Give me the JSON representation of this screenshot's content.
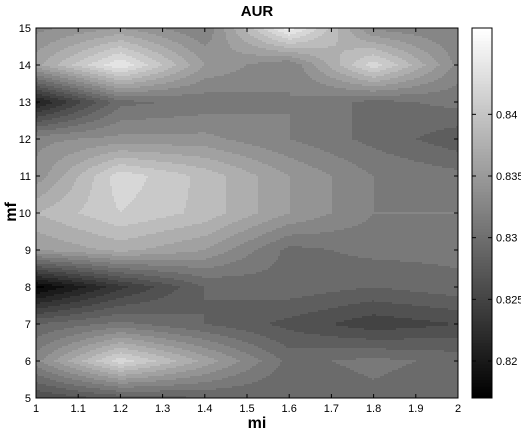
{
  "chart_data": {
    "type": "heatmap",
    "title": "AUR",
    "xlabel": "mi",
    "ylabel": "mf",
    "xlim": [
      1,
      2
    ],
    "ylim": [
      5,
      15
    ],
    "x_ticks": [
      "1",
      "1.1",
      "1.2",
      "1.3",
      "1.4",
      "1.5",
      "1.6",
      "1.7",
      "1.8",
      "1.9",
      "2"
    ],
    "y_ticks": [
      "5",
      "6",
      "7",
      "8",
      "9",
      "10",
      "11",
      "12",
      "13",
      "14",
      "15"
    ],
    "x": [
      1.0,
      1.2,
      1.4,
      1.6,
      1.8,
      2.0
    ],
    "y": [
      5,
      6,
      7,
      8,
      9,
      10,
      11,
      12,
      13,
      14,
      15
    ],
    "z": [
      [
        0.826,
        0.828,
        0.829,
        0.829,
        0.83,
        0.829
      ],
      [
        0.833,
        0.842,
        0.836,
        0.83,
        0.831,
        0.83
      ],
      [
        0.829,
        0.831,
        0.829,
        0.827,
        0.825,
        0.826
      ],
      [
        0.818,
        0.824,
        0.829,
        0.83,
        0.829,
        0.83
      ],
      [
        0.835,
        0.837,
        0.835,
        0.83,
        0.831,
        0.831
      ],
      [
        0.838,
        0.841,
        0.839,
        0.835,
        0.832,
        0.832
      ],
      [
        0.834,
        0.842,
        0.839,
        0.835,
        0.832,
        0.831
      ],
      [
        0.833,
        0.834,
        0.834,
        0.832,
        0.83,
        0.828
      ],
      [
        0.821,
        0.83,
        0.831,
        0.832,
        0.83,
        0.831
      ],
      [
        0.836,
        0.844,
        0.835,
        0.832,
        0.842,
        0.833
      ],
      [
        0.833,
        0.835,
        0.832,
        0.845,
        0.833,
        0.832
      ]
    ],
    "colorbar": {
      "label_ticks": [
        "0.82",
        "0.825",
        "0.83",
        "0.835",
        "0.84"
      ],
      "tick_values": [
        0.82,
        0.825,
        0.83,
        0.835,
        0.84
      ],
      "range": [
        0.817,
        0.847
      ],
      "levels": 20
    },
    "colormap": "gray",
    "grid": false
  }
}
